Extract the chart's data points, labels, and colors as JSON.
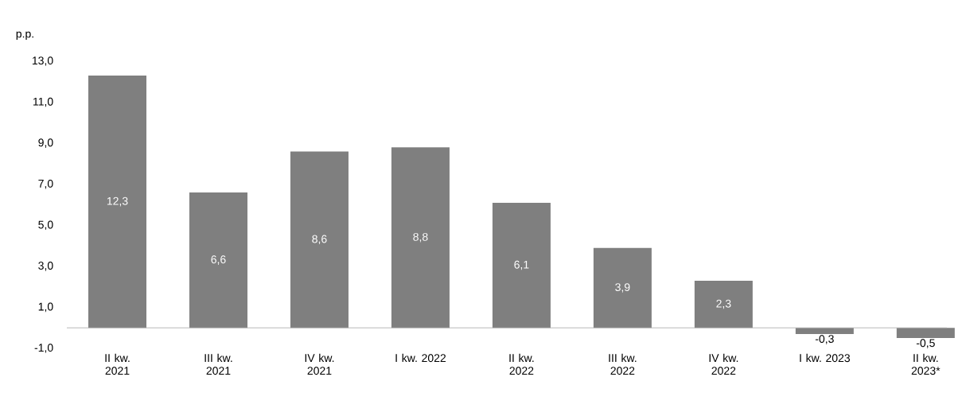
{
  "chart_data": {
    "type": "bar",
    "ylabel": "p.p.",
    "categories": [
      "II kw. 2021",
      "III kw. 2021",
      "IV kw. 2021",
      "I kw. 2022",
      "II kw. 2022",
      "III kw. 2022",
      "IV kw. 2022",
      "I kw. 2023",
      "II kw. 2023*"
    ],
    "values": [
      12.3,
      6.6,
      8.6,
      8.8,
      6.1,
      3.9,
      2.3,
      -0.3,
      -0.5
    ],
    "value_labels": [
      "12,3",
      "6,6",
      "8,6",
      "8,8",
      "6,1",
      "3,9",
      "2,3",
      "-0,3",
      "-0,5"
    ],
    "color": "#7f7f7f",
    "ylim": [
      -1,
      13
    ],
    "yticks": [
      {
        "value": -1,
        "label": "-1,0"
      },
      {
        "value": 1,
        "label": "1,0"
      },
      {
        "value": 3,
        "label": "3,0"
      },
      {
        "value": 5,
        "label": "5,0"
      },
      {
        "value": 7,
        "label": "7,0"
      },
      {
        "value": 9,
        "label": "9,0"
      },
      {
        "value": 11,
        "label": "11,0"
      },
      {
        "value": 13,
        "label": "13,0"
      }
    ],
    "grid": false
  }
}
